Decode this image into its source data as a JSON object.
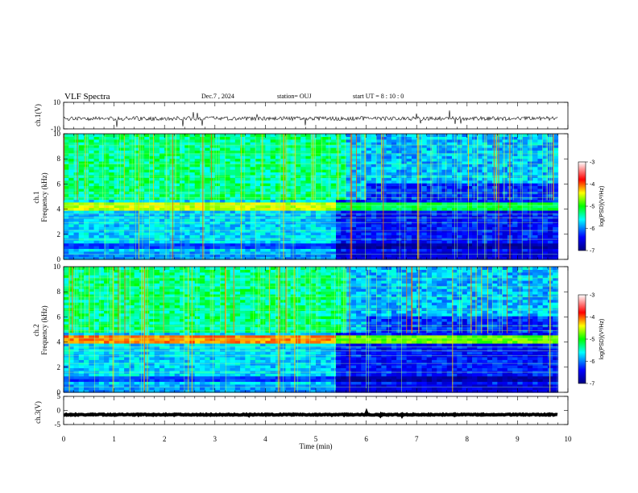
{
  "header": {
    "title": "VLF Spectra",
    "date": "Dec.7 , 2024",
    "station": "station= OUJ",
    "start": "start UT = 8 : 10 : 0"
  },
  "chart_data": [
    {
      "type": "line",
      "panel": "ch1-waveform",
      "ylabel": "ch.1(V)",
      "ylim": [
        -10,
        10
      ],
      "yticks": [
        "10",
        "-10"
      ],
      "xlim": [
        0,
        10
      ],
      "trace_level": -2.2,
      "color": "#000000"
    },
    {
      "type": "heatmap",
      "panel": "ch1-spectrogram",
      "ylabel": "Frequency (kHz)",
      "channel_label": "ch.1",
      "ylim": [
        0,
        10
      ],
      "yticks": [
        "0",
        "2",
        "4",
        "6",
        "8",
        "10"
      ],
      "xlim": [
        0,
        9.8
      ],
      "colorbar": {
        "label": "log(PSD)(V²/Hz)",
        "min": -7,
        "max": -3,
        "ticks": [
          "-3",
          "-4",
          "-5",
          "-6",
          "-7"
        ]
      }
    },
    {
      "type": "heatmap",
      "panel": "ch2-spectrogram",
      "ylabel": "Frequency (kHz)",
      "channel_label": "ch.2",
      "ylim": [
        0,
        10
      ],
      "yticks": [
        "0",
        "2",
        "4",
        "6",
        "8",
        "10"
      ],
      "xlim": [
        0,
        9.8
      ],
      "colorbar": {
        "label": "log(PSD)(V²/Hz)",
        "min": -7,
        "max": -3,
        "ticks": [
          "-3",
          "-4",
          "-5",
          "-6",
          "-7"
        ]
      }
    },
    {
      "type": "line",
      "panel": "ch3-waveform",
      "ylabel": "ch.3(V)",
      "ylim": [
        -5,
        5
      ],
      "yticks": [
        "5",
        "0",
        "-5"
      ],
      "xlim": [
        0,
        10
      ],
      "trace_level": -1.5,
      "color": "#000000"
    }
  ],
  "xaxis": {
    "label": "Time (min)",
    "ticks": [
      "0",
      "1",
      "2",
      "3",
      "4",
      "5",
      "6",
      "7",
      "8",
      "9",
      "10"
    ]
  }
}
